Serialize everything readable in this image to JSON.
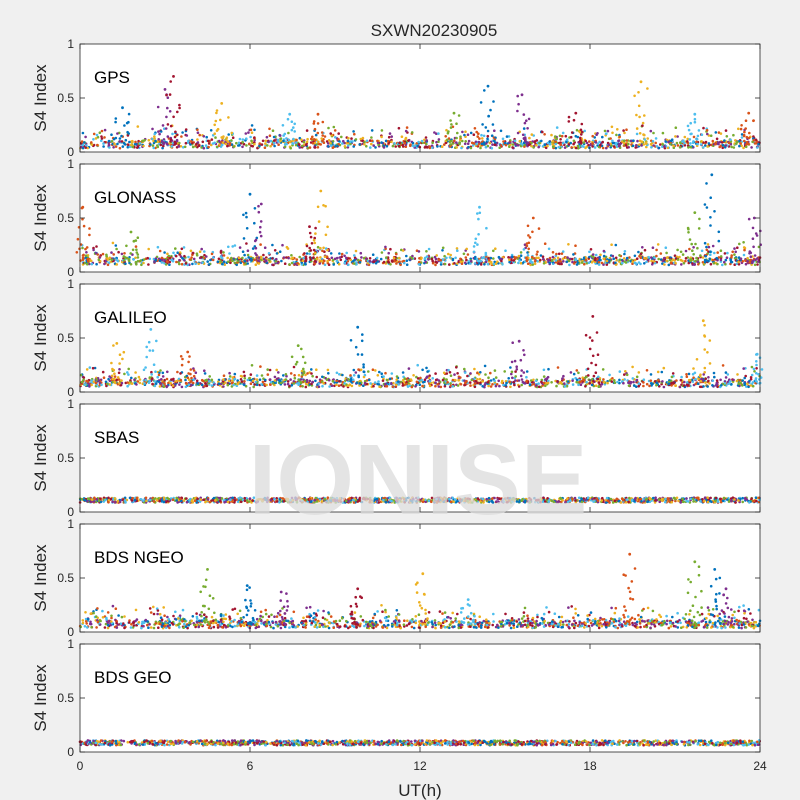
{
  "chart_data": {
    "type": "scatter",
    "title": "SXWN20230905",
    "xlabel": "UT(h)",
    "ylabel": "S4 Index",
    "xlim": [
      0,
      24
    ],
    "ylim": [
      0,
      1
    ],
    "xticks": [
      "0",
      "6",
      "12",
      "18",
      "24"
    ],
    "yticks": [
      "0",
      "0.5",
      "1"
    ],
    "grid": false,
    "watermark": "IONISE",
    "series_colors": [
      "#0072BD",
      "#D95319",
      "#EDB120",
      "#7E2F8E",
      "#77AC30",
      "#4DBEEE",
      "#A2142F"
    ],
    "panels": [
      {
        "label": "GPS",
        "baseline": 0.07,
        "spikes": [
          {
            "x": 1.5,
            "y": 0.41
          },
          {
            "x": 3.0,
            "y": 0.58
          },
          {
            "x": 3.3,
            "y": 0.7
          },
          {
            "x": 5.0,
            "y": 0.45
          },
          {
            "x": 7.4,
            "y": 0.35
          },
          {
            "x": 8.4,
            "y": 0.35
          },
          {
            "x": 13.2,
            "y": 0.36
          },
          {
            "x": 14.4,
            "y": 0.61
          },
          {
            "x": 15.6,
            "y": 0.53
          },
          {
            "x": 17.5,
            "y": 0.36
          },
          {
            "x": 19.8,
            "y": 0.65
          },
          {
            "x": 21.7,
            "y": 0.35
          },
          {
            "x": 23.6,
            "y": 0.36
          }
        ]
      },
      {
        "label": "GLONASS",
        "baseline": 0.1,
        "spikes": [
          {
            "x": 0.1,
            "y": 0.6
          },
          {
            "x": 1.8,
            "y": 0.37
          },
          {
            "x": 6.0,
            "y": 0.72
          },
          {
            "x": 6.4,
            "y": 0.63
          },
          {
            "x": 8.1,
            "y": 0.42
          },
          {
            "x": 8.5,
            "y": 0.75
          },
          {
            "x": 14.1,
            "y": 0.6
          },
          {
            "x": 16.0,
            "y": 0.5
          },
          {
            "x": 21.7,
            "y": 0.55
          },
          {
            "x": 22.3,
            "y": 0.9
          },
          {
            "x": 23.8,
            "y": 0.5
          }
        ]
      },
      {
        "label": "GALILEO",
        "baseline": 0.08,
        "spikes": [
          {
            "x": 1.3,
            "y": 0.45
          },
          {
            "x": 2.5,
            "y": 0.58
          },
          {
            "x": 3.8,
            "y": 0.37
          },
          {
            "x": 7.7,
            "y": 0.43
          },
          {
            "x": 9.8,
            "y": 0.6
          },
          {
            "x": 15.5,
            "y": 0.47
          },
          {
            "x": 18.1,
            "y": 0.7
          },
          {
            "x": 22.0,
            "y": 0.66
          },
          {
            "x": 23.9,
            "y": 0.35
          }
        ]
      },
      {
        "label": "SBAS",
        "baseline": 0.11,
        "spikes": []
      },
      {
        "label": "BDS NGEO",
        "baseline": 0.07,
        "spikes": [
          {
            "x": 4.5,
            "y": 0.58
          },
          {
            "x": 5.9,
            "y": 0.43
          },
          {
            "x": 7.1,
            "y": 0.37
          },
          {
            "x": 9.8,
            "y": 0.4
          },
          {
            "x": 12.1,
            "y": 0.54
          },
          {
            "x": 13.7,
            "y": 0.3
          },
          {
            "x": 19.4,
            "y": 0.72
          },
          {
            "x": 21.7,
            "y": 0.65
          },
          {
            "x": 22.4,
            "y": 0.58
          },
          {
            "x": 22.8,
            "y": 0.4
          }
        ]
      },
      {
        "label": "BDS GEO",
        "baseline": 0.085,
        "spikes": []
      }
    ]
  }
}
